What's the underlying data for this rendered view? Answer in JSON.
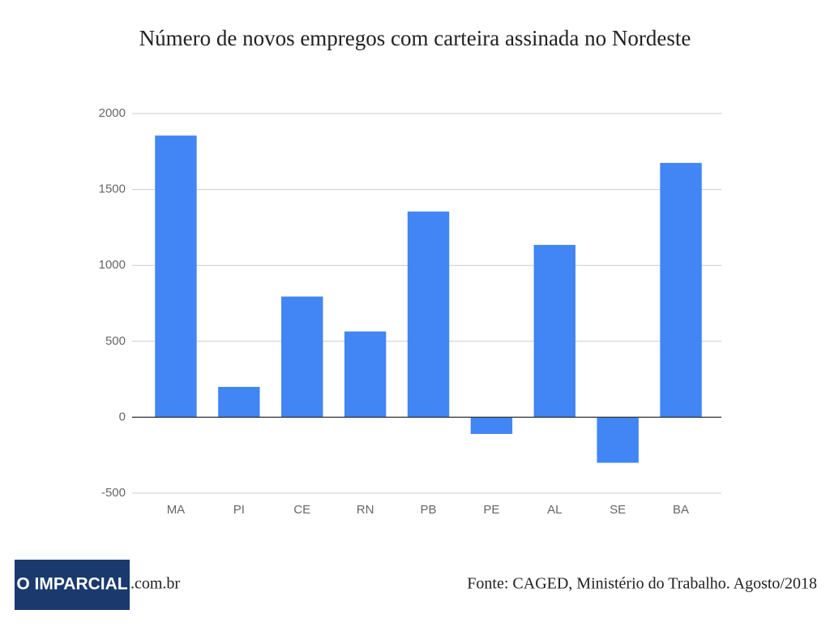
{
  "chart_data": {
    "type": "bar",
    "title": "Número de novos empregos com carteira assinada no Nordeste",
    "categories": [
      "MA",
      "PI",
      "CE",
      "RN",
      "PB",
      "PE",
      "AL",
      "SE",
      "BA"
    ],
    "values": [
      1855,
      200,
      795,
      565,
      1355,
      -110,
      1135,
      -300,
      1675
    ],
    "color": "#4285f4",
    "ylim": [
      -500,
      2000
    ],
    "yticks": [
      -500,
      0,
      500,
      1000,
      1500,
      2000
    ],
    "grid": true,
    "logo": "O IMPARCIAL",
    "logo_suffix": ".com.br",
    "source": "Fonte: CAGED, Ministério do Trabalho. Agosto/2018"
  }
}
